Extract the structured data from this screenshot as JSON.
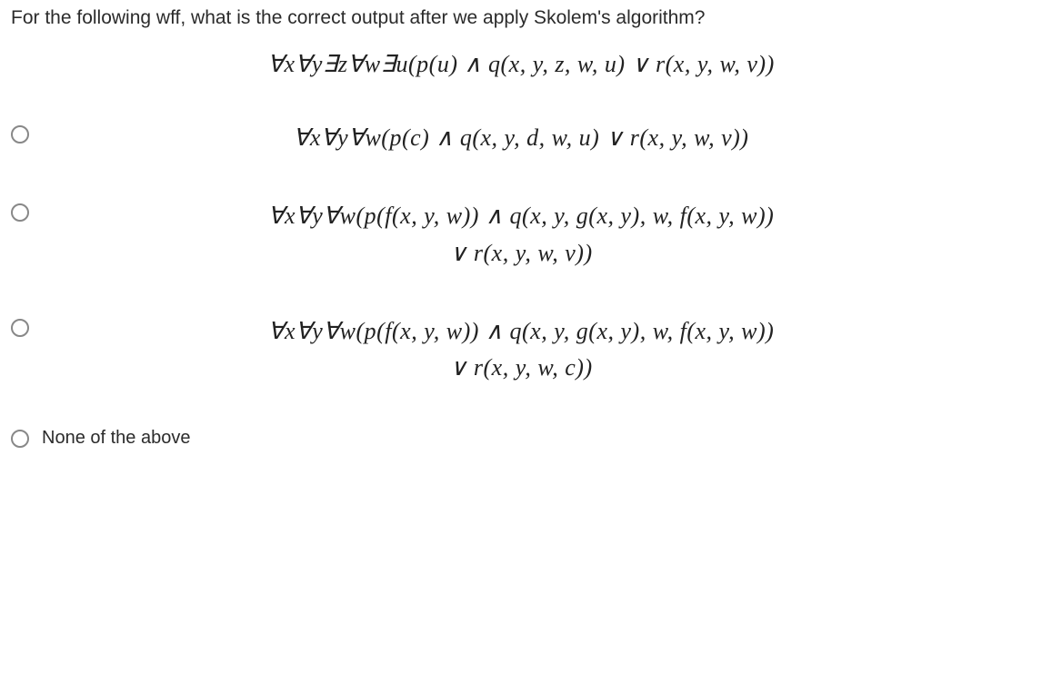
{
  "question": {
    "prompt": "For the following wff, what is the correct output after we apply Skolem's algorithm?",
    "main_formula": "∀x∀y∃z∀w∃u(p(u) ∧ q(x, y, z, w, u) ∨ r(x, y, w, v))"
  },
  "options": [
    {
      "type": "formula",
      "lines": [
        "∀x∀y∀w(p(c) ∧ q(x, y, d, w, u) ∨ r(x, y, w, v))"
      ]
    },
    {
      "type": "formula",
      "lines": [
        "∀x∀y∀w(p(f(x, y, w)) ∧ q(x, y, g(x, y), w, f(x, y, w))",
        "∨ r(x, y, w, v))"
      ]
    },
    {
      "type": "formula",
      "lines": [
        "∀x∀y∀w(p(f(x, y, w)) ∧ q(x, y, g(x, y), w, f(x, y, w))",
        "∨ r(x, y, w, c))"
      ]
    },
    {
      "type": "text",
      "label": "None of the above"
    }
  ],
  "style": {
    "text_color": "#2b2b2b",
    "background_color": "#ffffff",
    "radio_border": "#888888",
    "question_fontsize": 21,
    "formula_fontsize": 26,
    "option_text_fontsize": 20
  }
}
